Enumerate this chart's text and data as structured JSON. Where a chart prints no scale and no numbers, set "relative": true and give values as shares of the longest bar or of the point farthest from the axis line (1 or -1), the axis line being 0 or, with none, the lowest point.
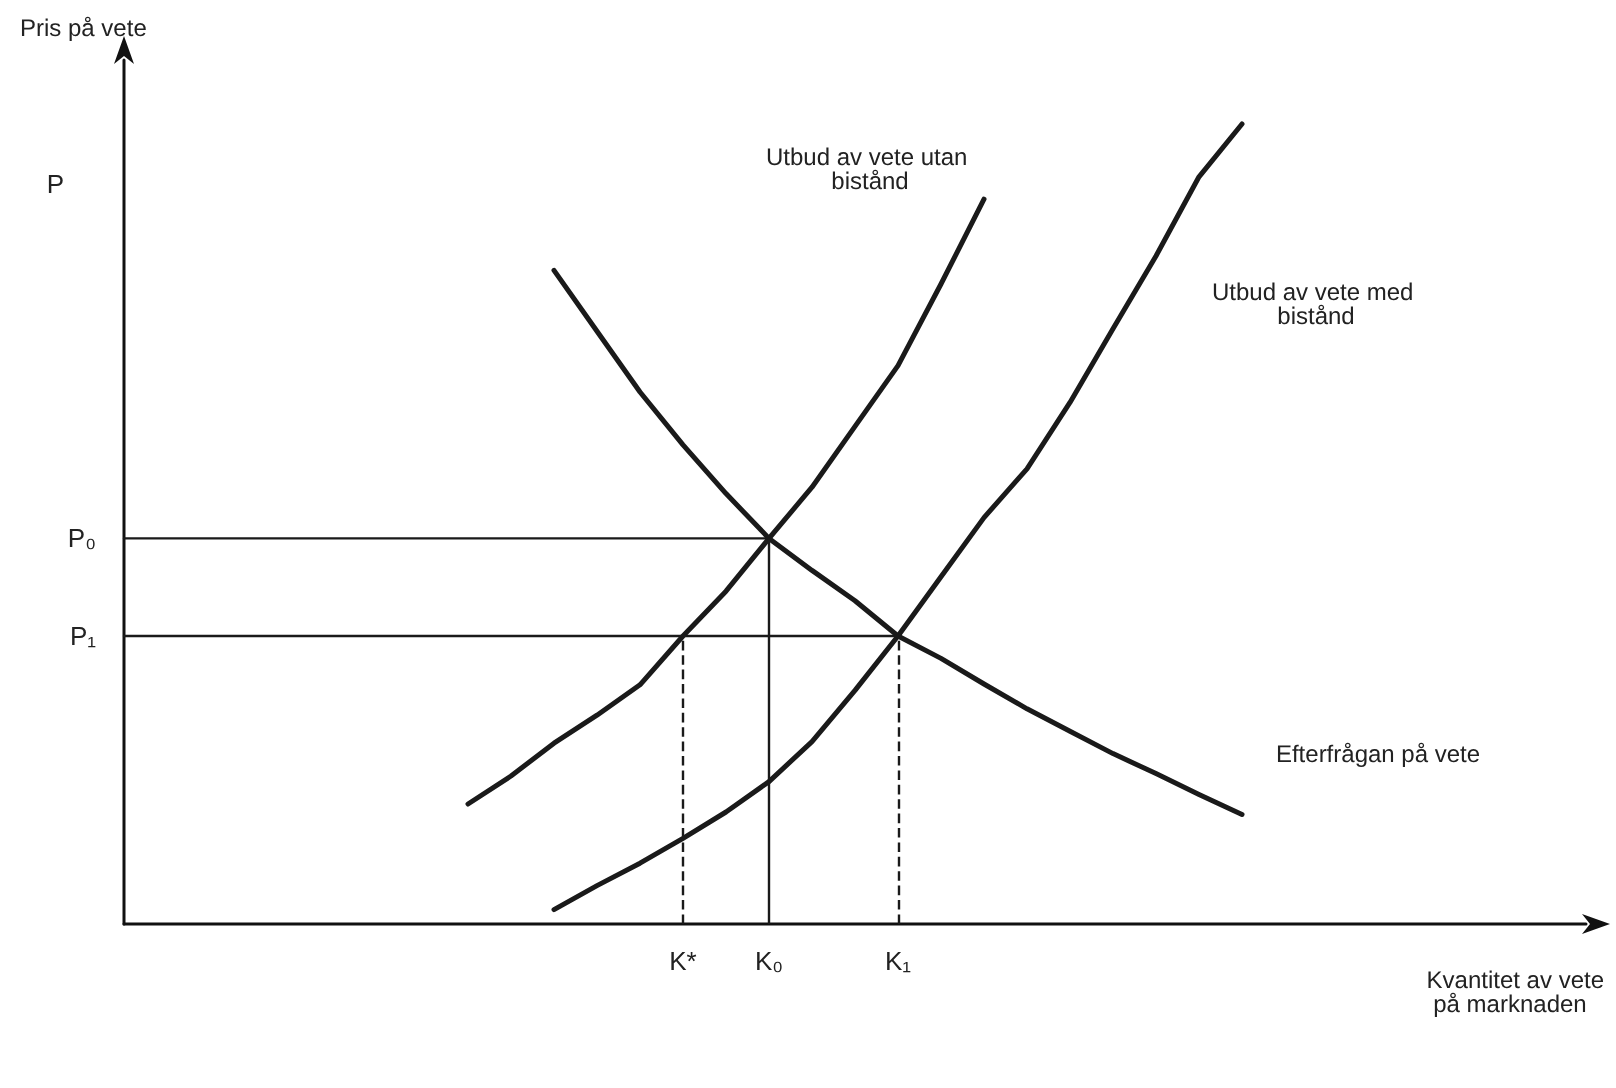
{
  "chart_data": {
    "type": "line",
    "relative": true,
    "ylabel": "Pris på vete",
    "xlabel": "Kvantitet av vete på marknaden",
    "marker": "none",
    "grid": false,
    "legend": false,
    "categories": [
      null,
      null,
      null,
      null,
      null,
      null,
      null,
      null,
      null,
      null,
      null,
      null,
      null,
      "K*",
      null,
      "K₀",
      null,
      null,
      "K₁",
      null,
      null,
      null,
      null,
      null,
      null,
      null,
      null,
      null,
      null,
      null,
      null,
      null,
      null,
      null,
      null
    ],
    "series": [
      {
        "name": "Utbud av vete utan bistånd",
        "color": "#1a1a1a",
        "values": [
          null,
          null,
          null,
          null,
          null,
          null,
          null,
          null,
          0.15,
          0.185,
          0.226,
          0.261,
          0.299,
          0.36,
          0.416,
          0.482,
          0.546,
          0.622,
          0.698,
          0.8,
          0.906,
          null,
          null,
          null,
          null,
          null,
          null,
          null,
          null,
          null,
          null,
          null,
          null,
          null,
          null
        ]
      },
      {
        "name": "Utbud av vete med bistånd",
        "color": "#1a1a1a",
        "values": [
          null,
          null,
          null,
          null,
          null,
          null,
          null,
          null,
          null,
          null,
          0.018,
          0.048,
          0.076,
          0.107,
          0.14,
          0.178,
          0.228,
          0.292,
          0.36,
          0.434,
          0.508,
          0.569,
          0.652,
          0.744,
          0.835,
          0.934,
          1.0,
          null,
          null,
          null,
          null,
          null,
          null,
          null,
          null
        ]
      },
      {
        "name": "Efterfrågan på vete",
        "color": "#1a1a1a",
        "values": [
          null,
          null,
          null,
          null,
          null,
          null,
          null,
          null,
          null,
          null,
          0.817,
          0.741,
          0.665,
          0.599,
          0.538,
          0.482,
          0.442,
          0.404,
          0.36,
          0.332,
          0.3,
          0.269,
          0.241,
          0.213,
          0.188,
          0.162,
          0.137,
          null,
          null,
          null,
          null,
          null,
          null,
          null,
          null
        ]
      },
      {
        "name": "P₀",
        "color": "#1a1a1a",
        "line_style": "solid",
        "values": [
          0.482,
          0.482,
          0.482,
          0.482,
          0.482,
          0.482,
          0.482,
          0.482,
          0.482,
          0.482,
          0.482,
          0.482,
          0.482,
          0.482,
          0.482,
          0.482,
          null,
          null,
          null,
          null,
          null,
          null,
          null,
          null,
          null,
          null,
          null,
          null,
          null,
          null,
          null,
          null,
          null,
          null,
          null
        ]
      },
      {
        "name": "P₁",
        "color": "#1a1a1a",
        "line_style": "solid",
        "values": [
          0.36,
          0.36,
          0.36,
          0.36,
          0.36,
          0.36,
          0.36,
          0.36,
          0.36,
          0.36,
          0.36,
          0.36,
          0.36,
          0.36,
          0.36,
          0.36,
          0.36,
          0.36,
          0.36,
          null,
          null,
          null,
          null,
          null,
          null,
          null,
          null,
          null,
          null,
          null,
          null,
          null,
          null,
          null,
          null
        ]
      }
    ],
    "ref_lines": [
      {
        "axis": "x",
        "value": "K*",
        "line_style": "dashed",
        "color": "#1a1a1a"
      },
      {
        "axis": "x",
        "value": "K₀",
        "line_style": "solid",
        "color": "#1a1a1a"
      },
      {
        "axis": "x",
        "value": "K₁",
        "line_style": "dashed",
        "color": "#1a1a1a"
      }
    ],
    "annotations": [
      "P"
    ]
  }
}
